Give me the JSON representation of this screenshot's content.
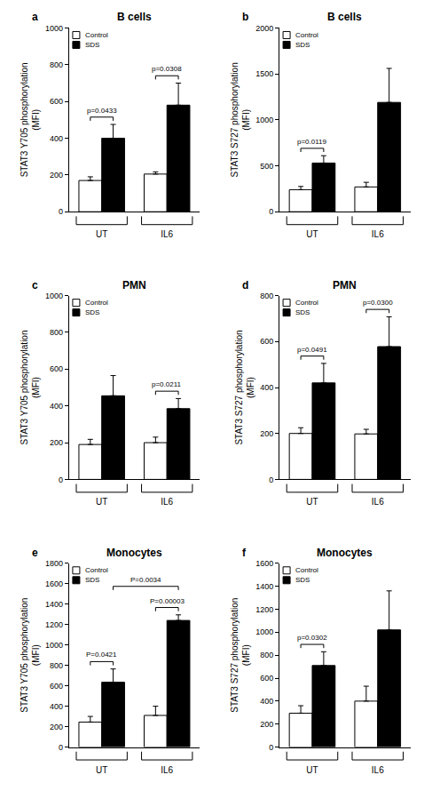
{
  "chart_data": [
    {
      "type": "bar",
      "panel": "a",
      "title": "B cells",
      "y_label": "STAT3 Y705 phosphorylation\n(MFI)",
      "categories": [
        "UT",
        "IL6"
      ],
      "series": [
        {
          "name": "Control",
          "color": "#ffffff",
          "values": [
            170,
            205
          ],
          "error": [
            20,
            12
          ]
        },
        {
          "name": "SDS",
          "color": "#000000",
          "values": [
            400,
            580
          ],
          "error": [
            75,
            120
          ]
        }
      ],
      "ylim": [
        0,
        1000
      ],
      "yticks": [
        0,
        200,
        400,
        600,
        800,
        1000
      ],
      "grid": false,
      "legend": "upper left",
      "annotations": [
        {
          "text": "p=0.0433",
          "from": {
            "category": "UT",
            "series": "Control"
          },
          "to": {
            "category": "UT",
            "series": "SDS"
          }
        },
        {
          "text": "p=0.0308",
          "from": {
            "category": "IL6",
            "series": "Control"
          },
          "to": {
            "category": "IL6",
            "series": "SDS"
          }
        }
      ]
    },
    {
      "type": "bar",
      "panel": "b",
      "title": "B cells",
      "y_label": "STAT3 S727 phosphorylation\n(MFI)",
      "categories": [
        "UT",
        "IL6"
      ],
      "series": [
        {
          "name": "Control",
          "color": "#ffffff",
          "values": [
            240,
            270
          ],
          "error": [
            35,
            50
          ]
        },
        {
          "name": "SDS",
          "color": "#000000",
          "values": [
            530,
            1190
          ],
          "error": [
            80,
            370
          ]
        }
      ],
      "ylim": [
        0,
        2000
      ],
      "yticks": [
        0,
        500,
        1000,
        1500,
        2000
      ],
      "grid": false,
      "legend": "upper left",
      "annotations": [
        {
          "text": "p=0.0119",
          "from": {
            "category": "UT",
            "series": "Control"
          },
          "to": {
            "category": "UT",
            "series": "SDS"
          }
        }
      ]
    },
    {
      "type": "bar",
      "panel": "c",
      "title": "PMN",
      "y_label": "STAT3 Y705 phosphorylation\n(MFI)",
      "categories": [
        "UT",
        "IL6"
      ],
      "series": [
        {
          "name": "Control",
          "color": "#ffffff",
          "values": [
            190,
            200
          ],
          "error": [
            28,
            30
          ]
        },
        {
          "name": "SDS",
          "color": "#000000",
          "values": [
            455,
            385
          ],
          "error": [
            110,
            55
          ]
        }
      ],
      "ylim": [
        0,
        1000
      ],
      "yticks": [
        0,
        200,
        400,
        600,
        800,
        1000
      ],
      "grid": false,
      "legend": "upper left",
      "annotations": [
        {
          "text": "p=0.0211",
          "from": {
            "category": "IL6",
            "series": "Control"
          },
          "to": {
            "category": "IL6",
            "series": "SDS"
          }
        }
      ]
    },
    {
      "type": "bar",
      "panel": "d",
      "title": "PMN",
      "y_label": "STAT3 S727 phosphorylation\n(MFI)",
      "categories": [
        "UT",
        "IL6"
      ],
      "series": [
        {
          "name": "Control",
          "color": "#ffffff",
          "values": [
            200,
            198
          ],
          "error": [
            25,
            20
          ]
        },
        {
          "name": "SDS",
          "color": "#000000",
          "values": [
            420,
            578
          ],
          "error": [
            85,
            130
          ]
        }
      ],
      "ylim": [
        0,
        800
      ],
      "yticks": [
        0,
        200,
        400,
        600,
        800
      ],
      "grid": false,
      "legend": "upper left",
      "annotations": [
        {
          "text": "p=0.0491",
          "from": {
            "category": "UT",
            "series": "Control"
          },
          "to": {
            "category": "UT",
            "series": "SDS"
          }
        },
        {
          "text": "p=0.0300",
          "from": {
            "category": "IL6",
            "series": "Control"
          },
          "to": {
            "category": "IL6",
            "series": "SDS"
          }
        }
      ]
    },
    {
      "type": "bar",
      "panel": "e",
      "title": "Monocytes",
      "y_label": "STAT3 Y705 phosphorylation\n(MFI)",
      "categories": [
        "UT",
        "IL6"
      ],
      "series": [
        {
          "name": "Control",
          "color": "#ffffff",
          "values": [
            245,
            310
          ],
          "error": [
            55,
            90
          ]
        },
        {
          "name": "SDS",
          "color": "#000000",
          "values": [
            635,
            1240
          ],
          "error": [
            130,
            55
          ]
        }
      ],
      "ylim": [
        0,
        1800
      ],
      "yticks": [
        0,
        200,
        400,
        600,
        800,
        1000,
        1200,
        1400,
        1600,
        1800
      ],
      "grid": false,
      "legend": "upper left",
      "annotations": [
        {
          "text": "P=0.0421",
          "from": {
            "category": "UT",
            "series": "Control"
          },
          "to": {
            "category": "UT",
            "series": "SDS"
          }
        },
        {
          "text": "P=0.00003",
          "from": {
            "category": "IL6",
            "series": "Control"
          },
          "to": {
            "category": "IL6",
            "series": "SDS"
          }
        },
        {
          "text": "P=0.0034",
          "from": {
            "category": "UT",
            "series": "SDS"
          },
          "to": {
            "category": "IL6",
            "series": "SDS"
          }
        }
      ]
    },
    {
      "type": "bar",
      "panel": "f",
      "title": "Monocytes",
      "y_label": "STAT3 S727 phosphorylation\n(MFI)",
      "categories": [
        "UT",
        "IL6"
      ],
      "series": [
        {
          "name": "Control",
          "color": "#ffffff",
          "values": [
            295,
            400
          ],
          "error": [
            65,
            130
          ]
        },
        {
          "name": "SDS",
          "color": "#000000",
          "values": [
            710,
            1020
          ],
          "error": [
            120,
            340
          ]
        }
      ],
      "ylim": [
        0,
        1600
      ],
      "yticks": [
        0,
        200,
        400,
        600,
        800,
        1000,
        1200,
        1400,
        1600
      ],
      "grid": false,
      "legend": "upper left",
      "annotations": [
        {
          "text": "p=0.0302",
          "from": {
            "category": "UT",
            "series": "Control"
          },
          "to": {
            "category": "UT",
            "series": "SDS"
          }
        }
      ]
    }
  ]
}
